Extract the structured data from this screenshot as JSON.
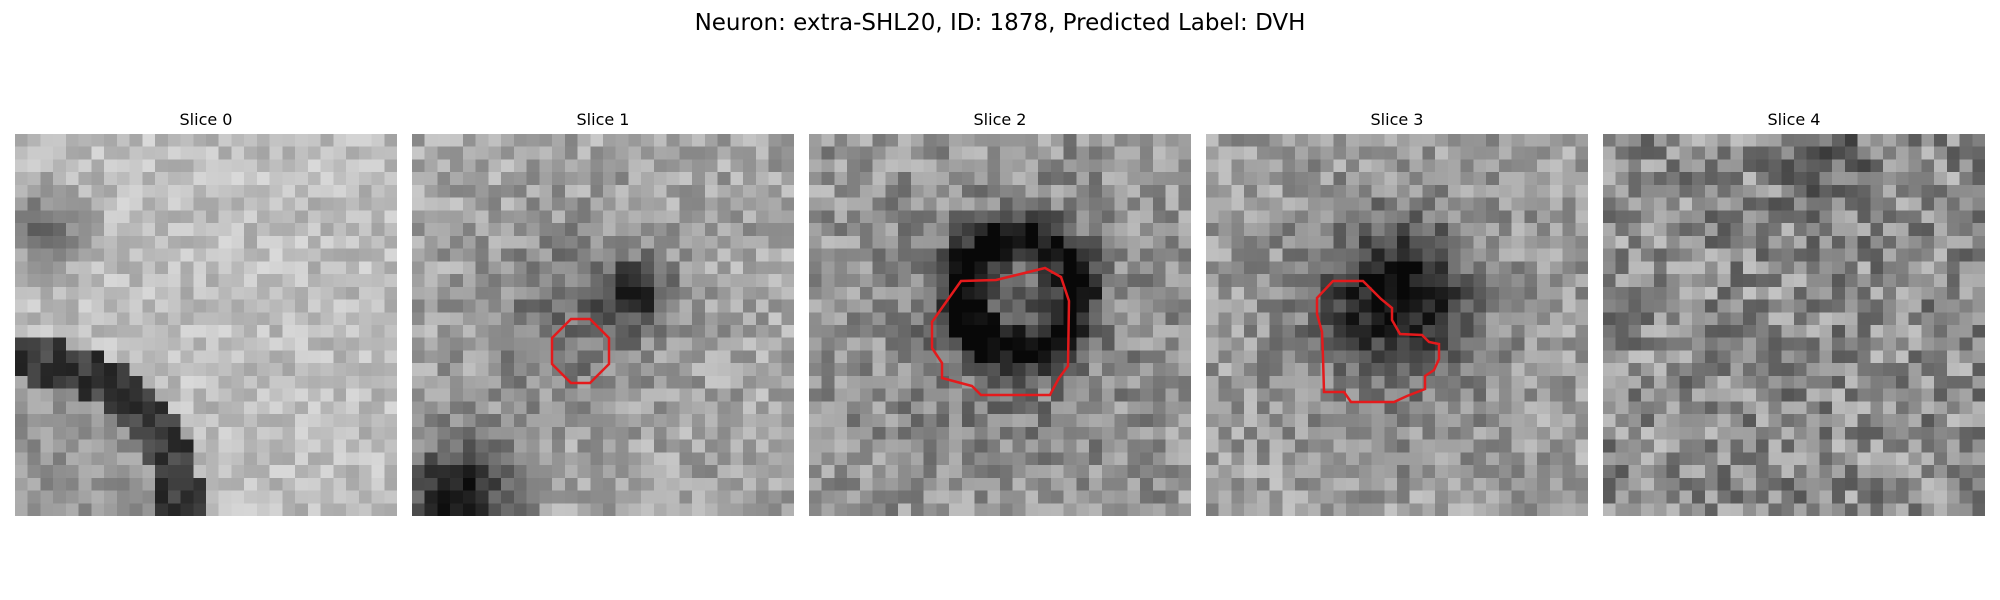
{
  "figure": {
    "title": "Neuron: extra-SHL20, ID: 1878, Predicted Label: DVH",
    "overlay_color": "#e41a1c"
  },
  "slices": [
    {
      "title": "Slice 0",
      "has_roi": false
    },
    {
      "title": "Slice 1",
      "has_roi": true
    },
    {
      "title": "Slice 2",
      "has_roi": true
    },
    {
      "title": "Slice 3",
      "has_roi": true
    },
    {
      "title": "Slice 4",
      "has_roi": false
    }
  ]
}
